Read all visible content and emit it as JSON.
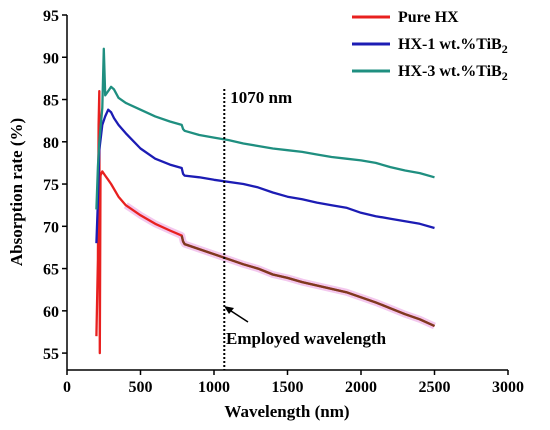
{
  "chart_data": {
    "type": "line",
    "title": "",
    "xlabel": "Wavelength (nm)",
    "ylabel": "Absorption rate (%)",
    "xlim": [
      0,
      3000
    ],
    "ylim": [
      53,
      95
    ],
    "xticks": [
      0,
      500,
      1000,
      1500,
      2000,
      2500,
      3000
    ],
    "yticks": [
      55,
      60,
      65,
      70,
      75,
      80,
      85,
      90,
      95
    ],
    "grid": false,
    "legend_position": "top-right",
    "series": [
      {
        "name": "Pure HX",
        "color": "#e8201f",
        "points": [
          [
            200,
            57
          ],
          [
            210,
            66
          ],
          [
            215,
            82
          ],
          [
            220,
            86
          ],
          [
            223,
            55
          ],
          [
            228,
            76
          ],
          [
            240,
            76.5
          ],
          [
            260,
            76
          ],
          [
            280,
            75.5
          ],
          [
            300,
            75
          ],
          [
            350,
            73.5
          ],
          [
            400,
            72.5
          ],
          [
            500,
            71.3
          ],
          [
            600,
            70.3
          ],
          [
            700,
            69.5
          ],
          [
            780,
            68.9
          ],
          [
            790,
            68.2
          ],
          [
            800,
            67.9
          ],
          [
            1000,
            66.7
          ],
          [
            1200,
            65.5
          ],
          [
            1300,
            65
          ],
          [
            1400,
            64.3
          ],
          [
            1500,
            63.9
          ],
          [
            1600,
            63.4
          ],
          [
            1700,
            63
          ],
          [
            1800,
            62.6
          ],
          [
            1900,
            62.2
          ],
          [
            2000,
            61.6
          ],
          [
            2100,
            61
          ],
          [
            2200,
            60.3
          ],
          [
            2300,
            59.6
          ],
          [
            2400,
            59
          ],
          [
            2500,
            58.2
          ]
        ]
      },
      {
        "name": "HX-1 wt.%TiB2",
        "color": "#1c1cb4",
        "points": [
          [
            200,
            68
          ],
          [
            210,
            73
          ],
          [
            220,
            79
          ],
          [
            240,
            82
          ],
          [
            260,
            83
          ],
          [
            280,
            83.8
          ],
          [
            300,
            83.5
          ],
          [
            320,
            82.8
          ],
          [
            350,
            82
          ],
          [
            400,
            81
          ],
          [
            500,
            79.2
          ],
          [
            600,
            78
          ],
          [
            700,
            77.3
          ],
          [
            780,
            76.9
          ],
          [
            790,
            76.2
          ],
          [
            800,
            76
          ],
          [
            900,
            75.8
          ],
          [
            1000,
            75.5
          ],
          [
            1200,
            75
          ],
          [
            1300,
            74.6
          ],
          [
            1400,
            74
          ],
          [
            1500,
            73.5
          ],
          [
            1600,
            73.2
          ],
          [
            1700,
            72.8
          ],
          [
            1800,
            72.5
          ],
          [
            1900,
            72.2
          ],
          [
            2000,
            71.6
          ],
          [
            2100,
            71.2
          ],
          [
            2200,
            70.9
          ],
          [
            2300,
            70.6
          ],
          [
            2400,
            70.3
          ],
          [
            2500,
            69.8
          ]
        ]
      },
      {
        "name": "HX-3 wt.%TiB2",
        "color": "#1f8f80",
        "points": [
          [
            200,
            72
          ],
          [
            210,
            77
          ],
          [
            220,
            80
          ],
          [
            240,
            84
          ],
          [
            250,
            91
          ],
          [
            260,
            85.5
          ],
          [
            280,
            86
          ],
          [
            300,
            86.5
          ],
          [
            320,
            86.2
          ],
          [
            350,
            85.2
          ],
          [
            400,
            84.6
          ],
          [
            500,
            83.8
          ],
          [
            600,
            83
          ],
          [
            700,
            82.4
          ],
          [
            780,
            82
          ],
          [
            790,
            81.5
          ],
          [
            800,
            81.3
          ],
          [
            900,
            80.8
          ],
          [
            1000,
            80.5
          ],
          [
            1100,
            80.2
          ],
          [
            1200,
            79.8
          ],
          [
            1300,
            79.5
          ],
          [
            1400,
            79.2
          ],
          [
            1500,
            79
          ],
          [
            1600,
            78.8
          ],
          [
            1700,
            78.5
          ],
          [
            1800,
            78.2
          ],
          [
            1900,
            78
          ],
          [
            2000,
            77.8
          ],
          [
            2100,
            77.5
          ],
          [
            2200,
            77
          ],
          [
            2300,
            76.6
          ],
          [
            2400,
            76.3
          ],
          [
            2500,
            75.8
          ]
        ]
      }
    ],
    "annotations": [
      {
        "text": "1070 nm",
        "x": 1070
      },
      {
        "text": "Employed wavelength"
      }
    ]
  }
}
